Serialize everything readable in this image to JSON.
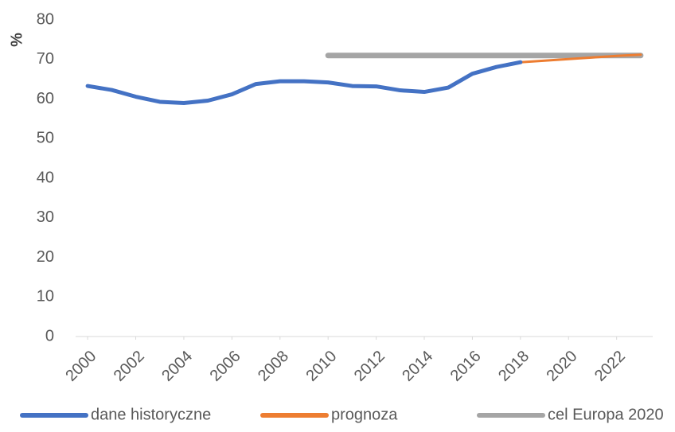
{
  "chart_data": {
    "type": "line",
    "y_label": "%",
    "x": [
      2000,
      2001,
      2002,
      2003,
      2004,
      2005,
      2006,
      2007,
      2008,
      2009,
      2010,
      2011,
      2012,
      2013,
      2014,
      2015,
      2016,
      2017,
      2018,
      2019,
      2020,
      2021,
      2022,
      2023
    ],
    "series": [
      {
        "name": "dane historyczne",
        "color": "#4472c4",
        "values": [
          63.3,
          62.3,
          60.6,
          59.3,
          59.0,
          59.6,
          61.2,
          63.8,
          64.5,
          64.5,
          64.2,
          63.3,
          63.2,
          62.2,
          61.8,
          62.9,
          66.4,
          68.1,
          69.3,
          null,
          null,
          null,
          null,
          null
        ]
      },
      {
        "name": "prognoza",
        "color": "#ed7d31",
        "values": [
          null,
          null,
          null,
          null,
          null,
          null,
          null,
          null,
          null,
          null,
          null,
          null,
          null,
          null,
          null,
          null,
          null,
          null,
          69.3,
          69.7,
          70.1,
          70.5,
          70.9,
          71.2
        ]
      },
      {
        "name": "cel Europa 2020",
        "color": "#a5a5a5",
        "values": [
          null,
          null,
          null,
          null,
          null,
          null,
          null,
          null,
          null,
          null,
          71,
          71,
          71,
          71,
          71,
          71,
          71,
          71,
          71,
          71,
          71,
          71,
          71,
          71
        ]
      }
    ],
    "xlim": [
      1999.5,
      2023.5
    ],
    "xticks": [
      2000,
      2002,
      2004,
      2006,
      2008,
      2010,
      2012,
      2014,
      2016,
      2018,
      2020,
      2022
    ],
    "ylim": [
      0,
      80
    ],
    "yticks": [
      0,
      10,
      20,
      30,
      40,
      50,
      60,
      70,
      80
    ],
    "grid": false
  }
}
